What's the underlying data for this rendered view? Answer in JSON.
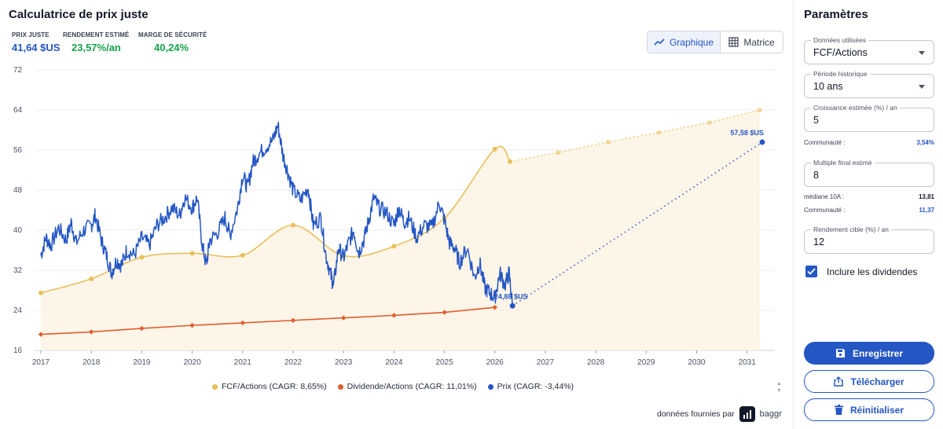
{
  "app": {
    "title": "Calculatrice de prix juste"
  },
  "metrics": [
    {
      "label": "PRIX JUSTE",
      "value": "41,64 $US",
      "color": "#2456c4"
    },
    {
      "label": "RENDEMENT ESTIMÉ",
      "value": "23,57%/an",
      "color": "#16a34a"
    },
    {
      "label": "MARGE DE SÉCURITÉ",
      "value": "40,24%",
      "color": "#16a34a"
    }
  ],
  "view_toggle": {
    "chart_label": "Graphique",
    "matrix_label": "Matrice",
    "active": "Graphique"
  },
  "chart_data": {
    "type": "line",
    "ylim": [
      16,
      72
    ],
    "yticks": [
      "72",
      "64",
      "56",
      "48",
      "40",
      "32",
      "24",
      "16"
    ],
    "xlim": [
      2017,
      2031.55
    ],
    "xticks": [
      "2017",
      "2018",
      "2019",
      "2020",
      "2021",
      "2022",
      "2023",
      "2024",
      "2025",
      "2026",
      "2027",
      "2028",
      "2029",
      "2030",
      "2031"
    ],
    "series": [
      {
        "name": "FCF/Actions (CAGR: 8,65%)",
        "color": "#e8bf5a",
        "points": [
          [
            2017.0,
            27.5
          ],
          [
            2018.0,
            30.3
          ],
          [
            2019.0,
            34.6
          ],
          [
            2020.0,
            35.4
          ],
          [
            2021.0,
            35.0
          ],
          [
            2022.0,
            41.0
          ],
          [
            2023.0,
            34.9
          ],
          [
            2024.0,
            36.8
          ],
          [
            2025.0,
            42.4
          ],
          [
            2026.0,
            56.2
          ],
          [
            2026.3,
            53.7
          ]
        ],
        "projection": [
          [
            2026.3,
            53.7
          ],
          [
            2027.25,
            55.5
          ],
          [
            2028.25,
            57.6
          ],
          [
            2029.25,
            59.5
          ],
          [
            2030.25,
            61.5
          ],
          [
            2031.25,
            64.0
          ]
        ]
      },
      {
        "name": "Dividende/Actions (CAGR: 11,01%)",
        "color": "#e05d2e",
        "points": [
          [
            2017.0,
            19.2
          ],
          [
            2018.0,
            19.7
          ],
          [
            2019.0,
            20.4
          ],
          [
            2020.0,
            21.0
          ],
          [
            2021.0,
            21.5
          ],
          [
            2022.0,
            22.0
          ],
          [
            2023.0,
            22.5
          ],
          [
            2024.0,
            23.0
          ],
          [
            2025.0,
            23.6
          ],
          [
            2026.0,
            24.6
          ]
        ]
      },
      {
        "name": "Prix (CAGR: -3,44%)",
        "color": "#2456c4",
        "points": [
          [
            2017.0,
            35.0
          ],
          [
            2017.1,
            38.5
          ],
          [
            2017.2,
            37.0
          ],
          [
            2017.35,
            40.5
          ],
          [
            2017.5,
            38.0
          ],
          [
            2017.6,
            41.5
          ],
          [
            2017.7,
            37.5
          ],
          [
            2017.85,
            40.0
          ],
          [
            2018.0,
            41.0
          ],
          [
            2018.08,
            43.0
          ],
          [
            2018.2,
            38.0
          ],
          [
            2018.3,
            35.0
          ],
          [
            2018.4,
            31.5
          ],
          [
            2018.5,
            34.0
          ],
          [
            2018.6,
            33.0
          ],
          [
            2018.7,
            36.0
          ],
          [
            2018.85,
            35.0
          ],
          [
            2019.0,
            38.5
          ],
          [
            2019.15,
            37.0
          ],
          [
            2019.3,
            41.0
          ],
          [
            2019.45,
            42.5
          ],
          [
            2019.6,
            44.5
          ],
          [
            2019.75,
            43.0
          ],
          [
            2019.85,
            46.5
          ],
          [
            2020.0,
            44.5
          ],
          [
            2020.1,
            46.5
          ],
          [
            2020.2,
            37.0
          ],
          [
            2020.28,
            33.0
          ],
          [
            2020.35,
            38.0
          ],
          [
            2020.5,
            39.5
          ],
          [
            2020.65,
            42.5
          ],
          [
            2020.75,
            39.0
          ],
          [
            2020.9,
            44.5
          ],
          [
            2021.0,
            51.0
          ],
          [
            2021.1,
            48.5
          ],
          [
            2021.2,
            53.5
          ],
          [
            2021.3,
            55.0
          ],
          [
            2021.45,
            56.5
          ],
          [
            2021.6,
            58.0
          ],
          [
            2021.7,
            61.0
          ],
          [
            2021.8,
            55.0
          ],
          [
            2021.9,
            51.5
          ],
          [
            2022.0,
            48.0
          ],
          [
            2022.15,
            46.0
          ],
          [
            2022.3,
            48.5
          ],
          [
            2022.4,
            41.0
          ],
          [
            2022.55,
            42.5
          ],
          [
            2022.65,
            35.0
          ],
          [
            2022.75,
            31.0
          ],
          [
            2022.8,
            28.8
          ],
          [
            2022.9,
            36.5
          ],
          [
            2023.0,
            34.5
          ],
          [
            2023.1,
            37.5
          ],
          [
            2023.2,
            40.0
          ],
          [
            2023.3,
            35.5
          ],
          [
            2023.4,
            38.0
          ],
          [
            2023.5,
            42.0
          ],
          [
            2023.6,
            46.5
          ],
          [
            2023.7,
            44.5
          ],
          [
            2023.85,
            43.5
          ],
          [
            2024.0,
            41.0
          ],
          [
            2024.1,
            44.5
          ],
          [
            2024.2,
            41.5
          ],
          [
            2024.3,
            42.5
          ],
          [
            2024.45,
            38.5
          ],
          [
            2024.6,
            41.0
          ],
          [
            2024.75,
            40.5
          ],
          [
            2024.9,
            45.5
          ],
          [
            2025.0,
            42.0
          ],
          [
            2025.1,
            37.5
          ],
          [
            2025.2,
            36.5
          ],
          [
            2025.3,
            33.5
          ],
          [
            2025.45,
            36.5
          ],
          [
            2025.6,
            30.5
          ],
          [
            2025.7,
            33.5
          ],
          [
            2025.8,
            28.5
          ],
          [
            2025.9,
            27.5
          ],
          [
            2026.0,
            26.5
          ],
          [
            2026.1,
            31.5
          ],
          [
            2026.2,
            29.0
          ],
          [
            2026.28,
            31.5
          ],
          [
            2026.35,
            24.9
          ]
        ],
        "projection": [
          [
            2026.35,
            24.9
          ],
          [
            2031.3,
            57.58
          ]
        ]
      }
    ],
    "annotations": [
      {
        "text": "24,88 $US",
        "x": 2026.35,
        "y": 24.88
      },
      {
        "text": "57,58 $US",
        "x": 2031.3,
        "y": 57.58
      }
    ],
    "grid": true,
    "legend_position": "bottom"
  },
  "credit": {
    "text": "données fournies par",
    "brand": "baggr"
  },
  "panel": {
    "title": "Paramètres",
    "fields": [
      {
        "label": "Données utilisées",
        "value": "FCF/Actions",
        "dropdown": true
      },
      {
        "label": "Période historique",
        "value": "10 ans",
        "dropdown": true
      },
      {
        "label": "Croissance estimée (%) / an",
        "value": "5",
        "dropdown": false
      },
      {
        "label": "Multiple final estimé",
        "value": "8",
        "dropdown": false
      },
      {
        "label": "Rendement cible (%) / an",
        "value": "12",
        "dropdown": false
      }
    ],
    "growth_community": {
      "label": "Communauté :",
      "value": "3,54%"
    },
    "multiple_median": {
      "label": "médiane 10A :",
      "value": "13,81"
    },
    "multiple_community": {
      "label": "Communauté :",
      "value": "11,37"
    },
    "include_dividends_label": "Inclure les dividendes",
    "buttons": {
      "save": "Enregistrer",
      "download": "Télécharger",
      "reset": "Réinitialiser"
    }
  }
}
